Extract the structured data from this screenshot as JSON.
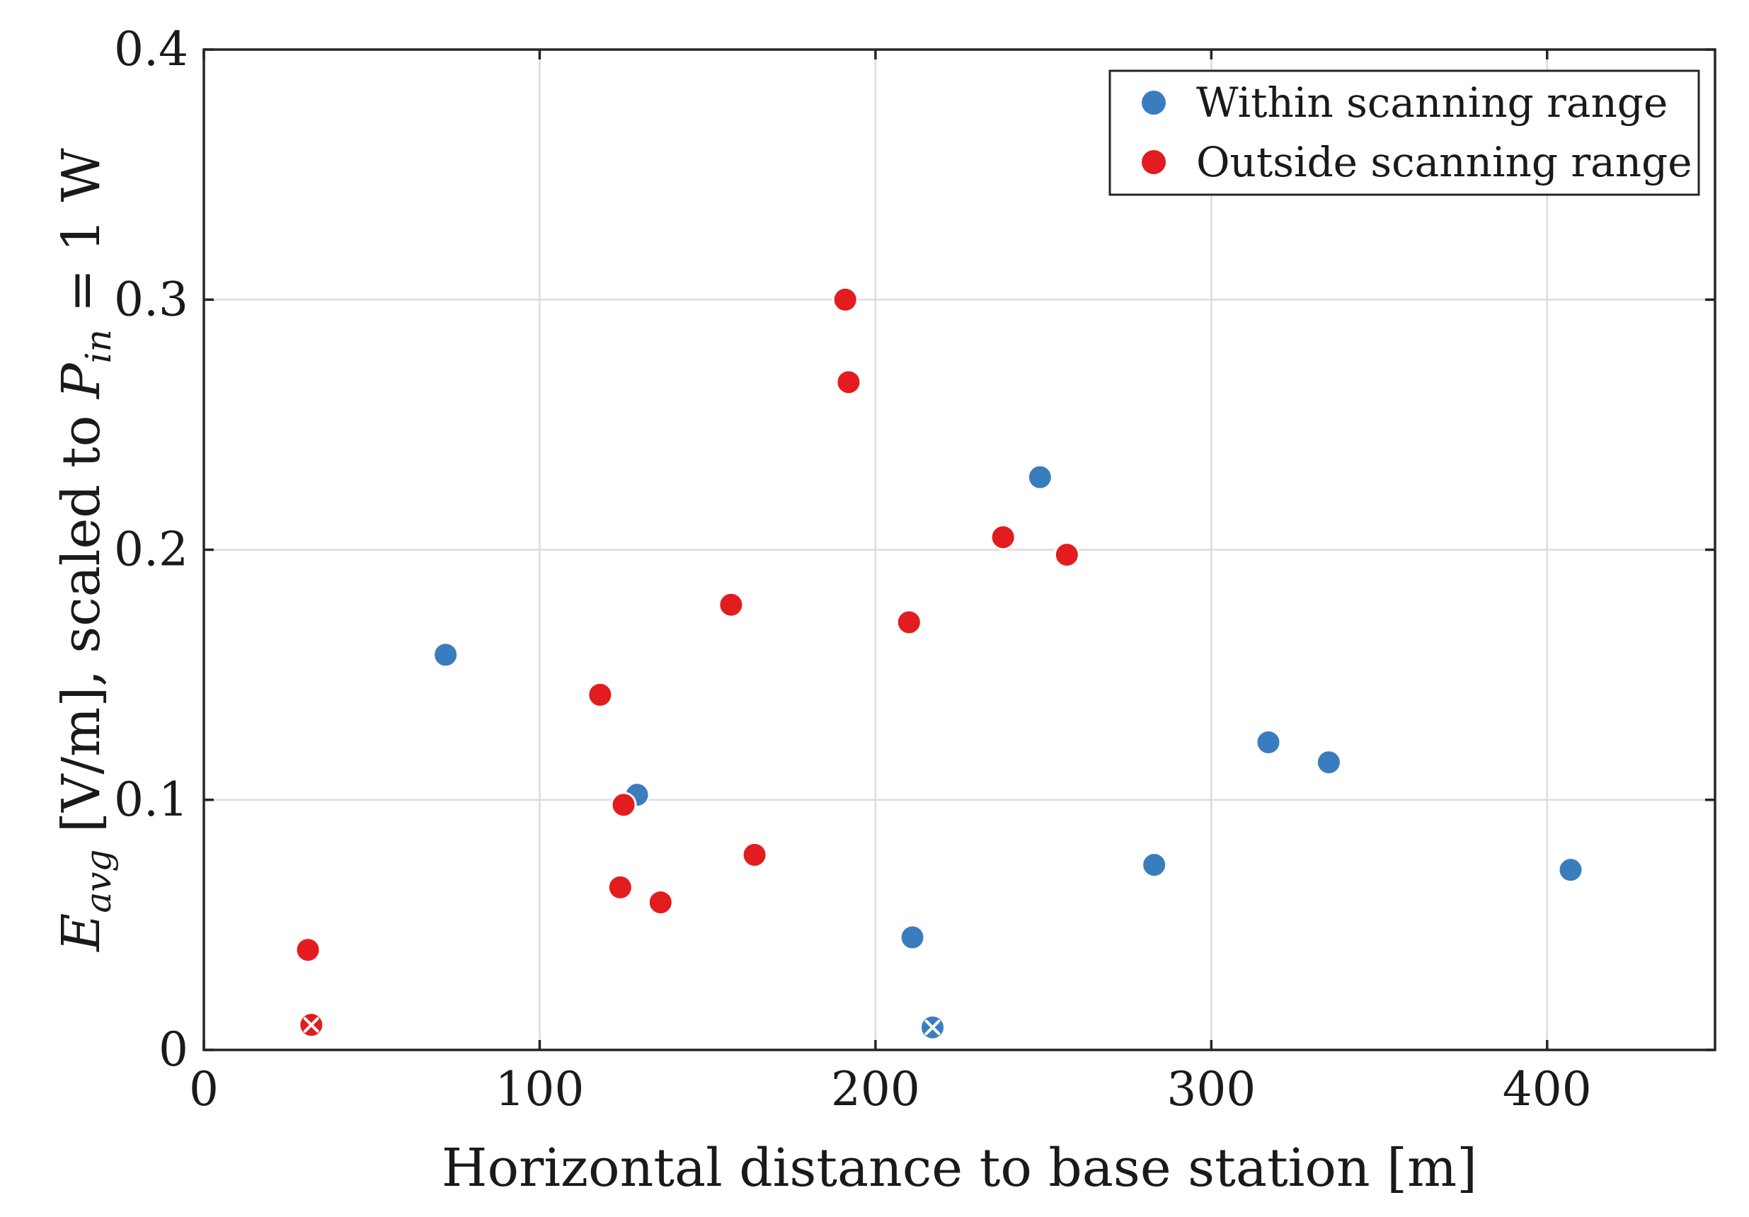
{
  "chart_data": {
    "type": "scatter",
    "title": "",
    "xlabel": "Horizontal distance to base station [m]",
    "ylabel": {
      "prefix": "E",
      "prefix_sub": "avg",
      "middle": " [V/m], scaled to ",
      "var": "P",
      "var_sub": "in",
      "suffix": " = 1 W"
    },
    "xlim": [
      0,
      450
    ],
    "ylim": [
      0,
      0.4
    ],
    "xticks": [
      0,
      100,
      200,
      300,
      400
    ],
    "yticks": [
      0,
      0.1,
      0.2,
      0.3,
      0.4
    ],
    "xtick_labels": [
      "0",
      "100",
      "200",
      "300",
      "400"
    ],
    "ytick_labels": [
      "0",
      "0.1",
      "0.2",
      "0.3",
      "0.4"
    ],
    "grid": true,
    "legend_position": "top-right",
    "series": [
      {
        "name": "Within scanning range",
        "color": "#3a7dbf",
        "points": [
          {
            "x": 72,
            "y": 0.158
          },
          {
            "x": 129,
            "y": 0.102
          },
          {
            "x": 211,
            "y": 0.045
          },
          {
            "x": 217,
            "y": 0.009,
            "marker": "x"
          },
          {
            "x": 249,
            "y": 0.229
          },
          {
            "x": 283,
            "y": 0.074
          },
          {
            "x": 317,
            "y": 0.123
          },
          {
            "x": 335,
            "y": 0.115
          },
          {
            "x": 407,
            "y": 0.072
          }
        ]
      },
      {
        "name": "Outside scanning range",
        "color": "#e21c1f",
        "points": [
          {
            "x": 31,
            "y": 0.04
          },
          {
            "x": 32,
            "y": 0.01,
            "marker": "x"
          },
          {
            "x": 118,
            "y": 0.142
          },
          {
            "x": 124,
            "y": 0.065
          },
          {
            "x": 125,
            "y": 0.098
          },
          {
            "x": 136,
            "y": 0.059
          },
          {
            "x": 157,
            "y": 0.178
          },
          {
            "x": 164,
            "y": 0.078
          },
          {
            "x": 191,
            "y": 0.3
          },
          {
            "x": 192,
            "y": 0.267
          },
          {
            "x": 210,
            "y": 0.171
          },
          {
            "x": 238,
            "y": 0.205
          },
          {
            "x": 257,
            "y": 0.198
          }
        ]
      }
    ]
  }
}
